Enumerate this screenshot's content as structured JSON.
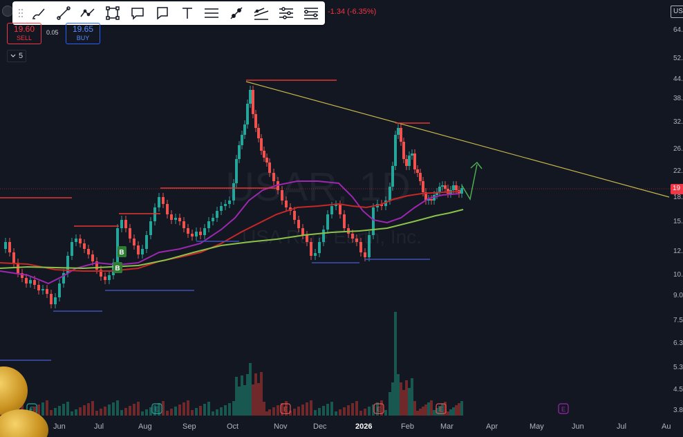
{
  "toolbar": {
    "tools": [
      {
        "name": "brush-icon"
      },
      {
        "name": "trend-line-icon"
      },
      {
        "name": "path-icon"
      },
      {
        "name": "rectangle-icon"
      },
      {
        "name": "callout-icon"
      },
      {
        "name": "comment-icon"
      },
      {
        "name": "text-icon"
      },
      {
        "name": "horizontal-lines-icon"
      },
      {
        "name": "ray-icon"
      },
      {
        "name": "regression-icon"
      },
      {
        "name": "parallel-channel-icon"
      },
      {
        "name": "fib-retracement-icon"
      }
    ]
  },
  "header": {
    "change": "-1.34 (-6.35%)",
    "sell": {
      "price": "19.60",
      "label": "SELL"
    },
    "spread": "0.05",
    "buy": {
      "price": "19.65",
      "label": "BUY"
    },
    "interval": "5"
  },
  "watermark": {
    "symbol": "USAR, 1D",
    "company": "USA Rare Earth, Inc."
  },
  "right_axis": {
    "currency": "USD",
    "ticks": [
      "64.",
      "52.",
      "44.",
      "38.",
      "32.",
      "26.",
      "22.",
      "18.",
      "15.",
      "12.",
      "10.",
      "9.0",
      "7.5",
      "6.3",
      "5.3",
      "4.5",
      "3.8"
    ],
    "last_price": "19"
  },
  "time_axis": {
    "ticks": [
      {
        "label": "Jun",
        "bold": false
      },
      {
        "label": "Jul",
        "bold": false
      },
      {
        "label": "Aug",
        "bold": false
      },
      {
        "label": "Sep",
        "bold": false
      },
      {
        "label": "Oct",
        "bold": false
      },
      {
        "label": "Nov",
        "bold": false
      },
      {
        "label": "Dec",
        "bold": false
      },
      {
        "label": "2026",
        "bold": true
      },
      {
        "label": "Feb",
        "bold": false
      },
      {
        "label": "Mar",
        "bold": false
      },
      {
        "label": "Apr",
        "bold": false
      },
      {
        "label": "May",
        "bold": false
      },
      {
        "label": "Jun",
        "bold": false
      },
      {
        "label": "Jul",
        "bold": false
      },
      {
        "label": "Au",
        "bold": false
      }
    ]
  },
  "markers": {
    "buy_labels": [
      "B",
      "B"
    ],
    "earnings_label": "E"
  },
  "colors": {
    "background": "#131722",
    "up": "#26a69a",
    "down": "#ef5350",
    "ma_purple": "#9c27b0",
    "ma_red": "#c62828",
    "ma_green": "#8bc34a",
    "trendline": "#c7b74a",
    "resistance": "#e53935",
    "support": "#3f51b5",
    "arrow": "#4caf50",
    "earnings_future": "#9c27b0"
  }
}
